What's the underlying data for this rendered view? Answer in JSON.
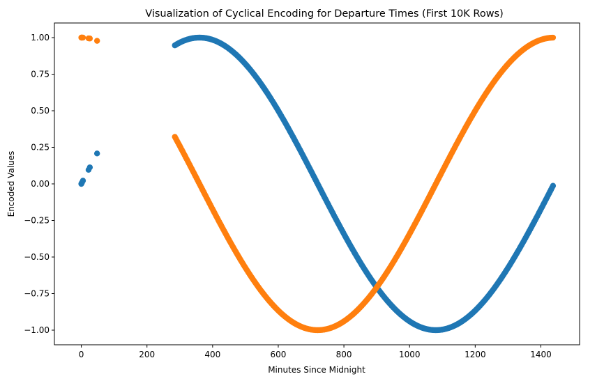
{
  "chart_data": {
    "type": "scatter",
    "title": "Visualization of Cyclical Encoding for Departure Times (First 10K Rows)",
    "xlabel": "Minutes Since Midnight",
    "ylabel": "Encoded Values",
    "xlim": [
      -82,
      1518
    ],
    "ylim": [
      -1.1,
      1.1
    ],
    "x_ticks": [
      0,
      200,
      400,
      600,
      800,
      1000,
      1200,
      1400
    ],
    "y_ticks": [
      1.0,
      0.75,
      0.5,
      0.25,
      0.0,
      -0.25,
      -0.5,
      -0.75,
      -1.0
    ],
    "y_tick_labels": [
      "1.00",
      "0.75",
      "0.50",
      "0.25",
      "0.00",
      "−0.25",
      "−0.50",
      "−0.75",
      "−1.00"
    ],
    "x_tick_labels": [
      "0",
      "200",
      "400",
      "600",
      "800",
      "1000",
      "1200",
      "1400"
    ],
    "grid": false,
    "series": [
      {
        "color": "#1f77b4",
        "marker": "circle",
        "isolated_points": [
          {
            "x": 0,
            "y": 0.0
          },
          {
            "x": 1,
            "y": 0.004
          },
          {
            "x": 2,
            "y": 0.009
          },
          {
            "x": 5,
            "y": 0.022
          },
          {
            "x": 22,
            "y": 0.096
          },
          {
            "x": 26,
            "y": 0.113
          },
          {
            "x": 48,
            "y": 0.208
          }
        ],
        "curve_x_range": [
          285,
          1439
        ],
        "curve_step": 3
      },
      {
        "color": "#ff7f0e",
        "marker": "circle",
        "isolated_points": [
          {
            "x": 0,
            "y": 1.0
          },
          {
            "x": 1,
            "y": 1.0
          },
          {
            "x": 2,
            "y": 1.0
          },
          {
            "x": 5,
            "y": 1.0
          },
          {
            "x": 22,
            "y": 0.995
          },
          {
            "x": 26,
            "y": 0.994
          },
          {
            "x": 48,
            "y": 0.978
          }
        ],
        "curve_x_range": [
          285,
          1439
        ],
        "curve_step": 3
      }
    ]
  }
}
